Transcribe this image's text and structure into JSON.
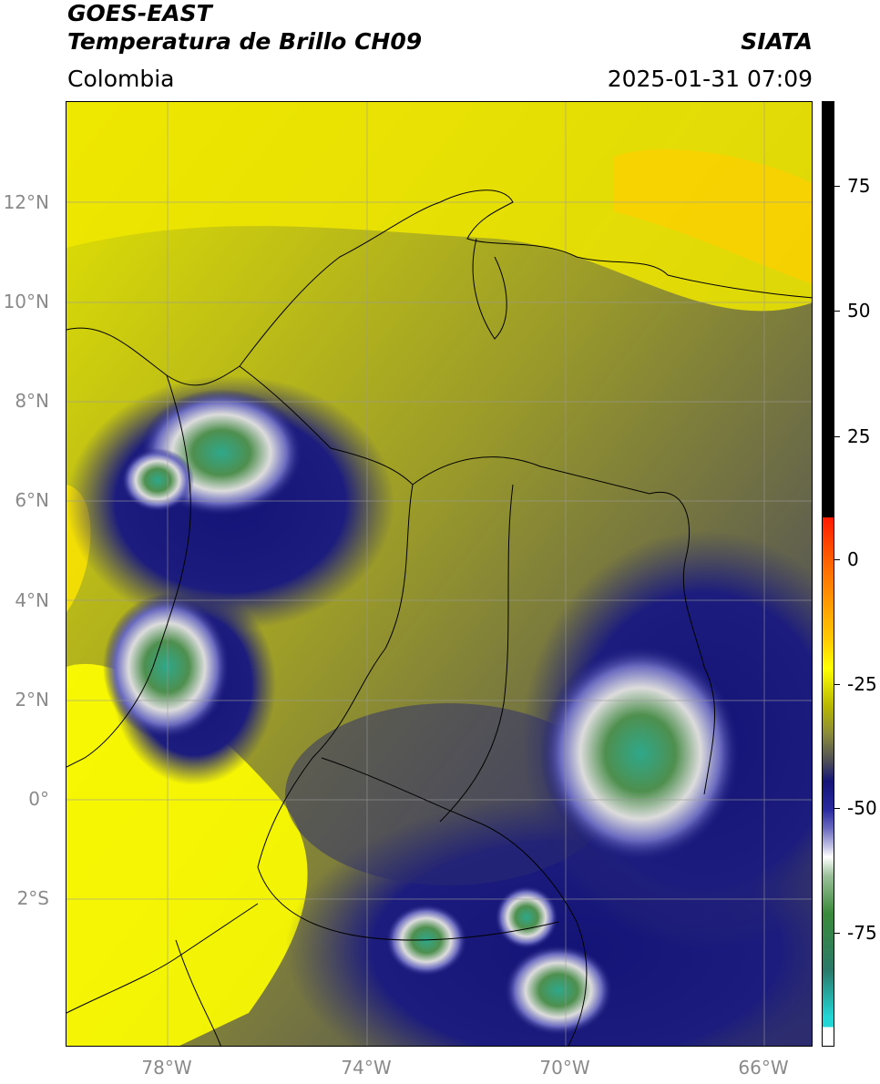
{
  "header": {
    "satellite": "GOES-EAST",
    "product": "Temperatura de Brillo CH09",
    "region": "Colombia",
    "institution": "SIATA",
    "datetime": "2025-01-31 07:09"
  },
  "map": {
    "lat_labels": [
      "12°N",
      "10°N",
      "8°N",
      "6°N",
      "4°N",
      "2°N",
      "0°",
      "2°S"
    ],
    "lon_labels": [
      "78°W",
      "74°W",
      "70°W",
      "66°W"
    ],
    "gridlines": true
  },
  "colorbar": {
    "tick_labels": [
      "75",
      "50",
      "25",
      "0",
      "-25",
      "-50",
      "-75"
    ],
    "colors": {
      "above_10": "#000000",
      "red": "#ff1a00",
      "orange": "#ff9900",
      "yellow": "#ffff00",
      "olive": "#9a9a2a",
      "navy": "#141478",
      "white": "#ffffff",
      "green": "#3a8a3a",
      "cyan": "#22d6d6"
    }
  }
}
